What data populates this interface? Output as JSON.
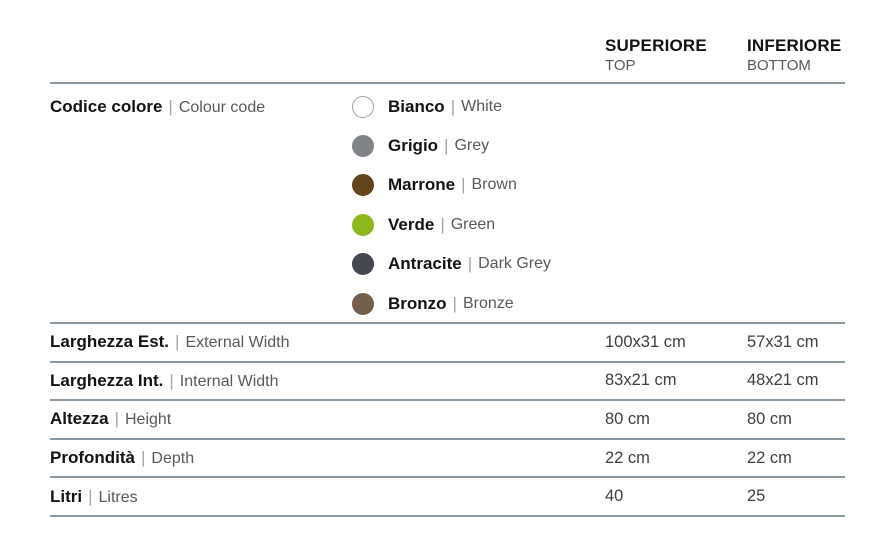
{
  "palette": {
    "rule_color": "#8b99a2",
    "primary_text": "#131313",
    "secondary_text": "#58595b",
    "value_text": "#404042"
  },
  "separator": "|",
  "header": {
    "columns": [
      {
        "primary": "SUPERIORE",
        "secondary": "TOP"
      },
      {
        "primary": "INFERIORE",
        "secondary": "BOTTOM"
      }
    ]
  },
  "color_section": {
    "label_it": "Codice colore",
    "label_en": "Colour code",
    "colors": [
      {
        "name_it": "Bianco",
        "name_en": "White",
        "hex": "#ffffff",
        "border": "#9aa2a6"
      },
      {
        "name_it": "Grigio",
        "name_en": "Grey",
        "hex": "#808489",
        "border": "#808489"
      },
      {
        "name_it": "Marrone",
        "name_en": "Brown",
        "hex": "#64441f",
        "border": "#64441f"
      },
      {
        "name_it": "Verde",
        "name_en": "Green",
        "hex": "#8db71c",
        "border": "#8db71c"
      },
      {
        "name_it": "Antracite",
        "name_en": "Dark Grey",
        "hex": "#43474e",
        "border": "#43474e"
      },
      {
        "name_it": "Bronzo",
        "name_en": "Bronze",
        "hex": "#74604a",
        "border": "#74604a"
      }
    ]
  },
  "spec_rows": [
    {
      "label_it": "Larghezza Est.",
      "label_en": "External Width",
      "superiore": "100x31 cm",
      "inferiore": "57x31 cm"
    },
    {
      "label_it": "Larghezza Int.",
      "label_en": "Internal Width",
      "superiore": "83x21 cm",
      "inferiore": "48x21 cm"
    },
    {
      "label_it": "Altezza",
      "label_en": "Height",
      "superiore": "80 cm",
      "inferiore": "80 cm"
    },
    {
      "label_it": "Profondità",
      "label_en": "Depth",
      "superiore": "22 cm",
      "inferiore": "22 cm"
    },
    {
      "label_it": "Litri",
      "label_en": "Litres",
      "superiore": "40",
      "inferiore": "25"
    }
  ]
}
